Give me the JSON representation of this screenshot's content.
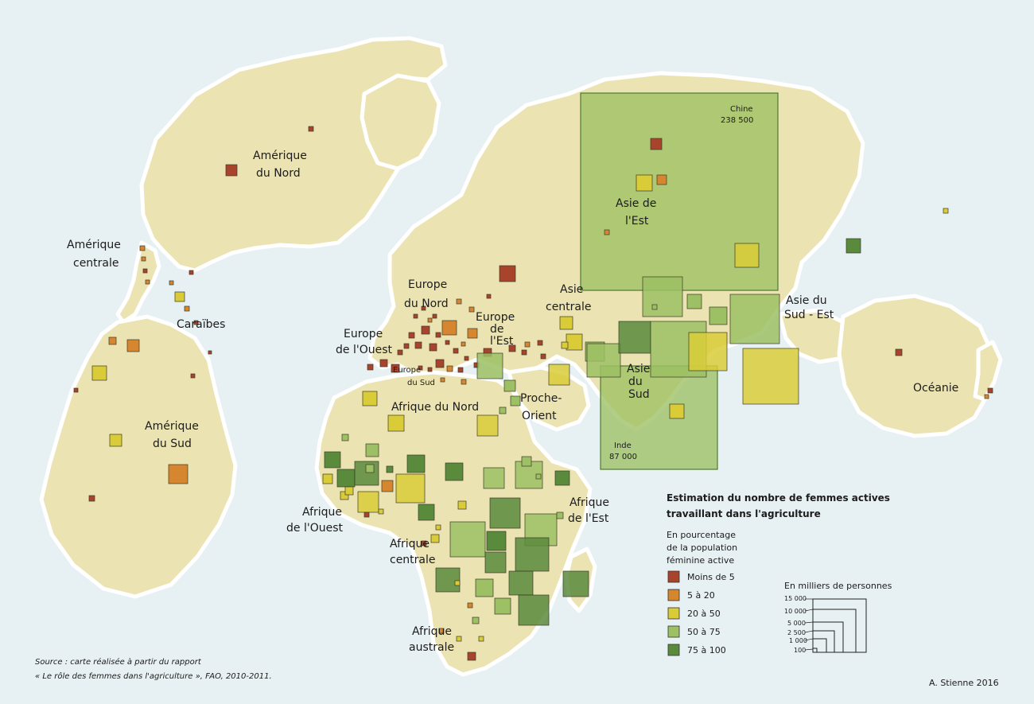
{
  "legend": {
    "title_line1": "Estimation du nombre de femmes actives",
    "title_line2": "travaillant dans l'agriculture",
    "percent_label_line1": "En pourcentage",
    "percent_label_line2": "de la population",
    "percent_label_line3": "féminine active",
    "classes": [
      {
        "label": "Moins de 5",
        "color": "#a8432c"
      },
      {
        "label": "5 à 20",
        "color": "#d6862f"
      },
      {
        "label": "20 à 50",
        "color": "#d9cc38"
      },
      {
        "label": "50 à 75",
        "color": "#9cc063"
      },
      {
        "label": "75 à 100",
        "color": "#5a8a3c"
      }
    ],
    "size_title": "En milliers de personnes",
    "size_values": [
      "15 000",
      "10 000",
      "5 000",
      "2 500",
      "1 000",
      "100"
    ]
  },
  "labels": {
    "chine": "Chine",
    "chine_value": "238 500",
    "inde": "Inde",
    "inde_value": "87 000",
    "amerique_du_nord_1": "Amérique",
    "amerique_du_nord_2": "du Nord",
    "amerique_centrale_1": "Amérique",
    "amerique_centrale_2": "centrale",
    "caraibes": "Caraïbes",
    "amerique_du_sud_1": "Amérique",
    "amerique_du_sud_2": "du Sud",
    "europe_du_nord_1": "Europe",
    "europe_du_nord_2": "du Nord",
    "europe_de_l_est_1": "Europe",
    "europe_de_l_est_2": "de",
    "europe_de_l_est_3": "l'Est",
    "europe_de_l_ouest_1": "Europe",
    "europe_de_l_ouest_2": "de l'Ouest",
    "europe_du_sud_1": "Europe",
    "europe_du_sud_2": "du Sud",
    "asie_centrale_1": "Asie",
    "asie_centrale_2": "centrale",
    "asie_de_l_est_1": "Asie de",
    "asie_de_l_est_2": "l'Est",
    "asie_du_sud_est_1": "Asie du",
    "asie_du_sud_est_2": "Sud - Est",
    "asie_du_sud_1": "Asie",
    "asie_du_sud_2": "du",
    "asie_du_sud_3": "Sud",
    "proche_orient_1": "Proche-",
    "proche_orient_2": "Orient",
    "afrique_du_nord": "Afrique du Nord",
    "afrique_de_l_ouest_1": "Afrique",
    "afrique_de_l_ouest_2": "de l'Ouest",
    "afrique_centrale_1": "Afrique",
    "afrique_centrale_2": "centrale",
    "afrique_de_l_est_1": "Afrique",
    "afrique_de_l_est_2": "de l'Est",
    "afrique_australe_1": "Afrique",
    "afrique_australe_2": "australe",
    "oceanie": "Océanie"
  },
  "source_line1": "Source : carte réalisée à partir du rapport",
  "source_line2": "« Le rôle des femmes dans l'agriculture », FAO, 2010-2011.",
  "signature": "A. Stienne 2016",
  "colors": {
    "ocean": "#e7f0f3",
    "land": "#ece3b2",
    "land_edge": "#ffffff",
    "class1": "#a8432c",
    "class2": "#d6862f",
    "class3": "#d9cc38",
    "class4": "#9cc063",
    "class5": "#5a8a3c"
  }
}
